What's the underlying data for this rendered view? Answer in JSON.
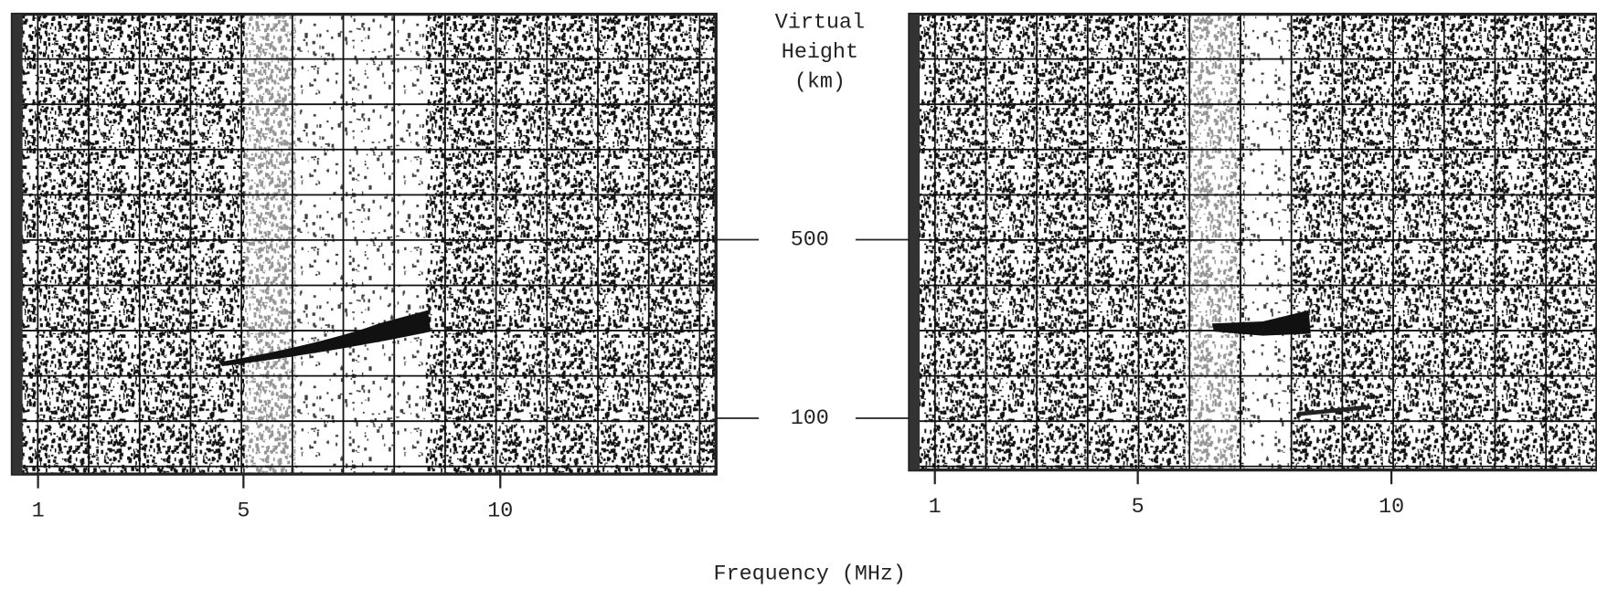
{
  "chart_data": [
    {
      "type": "ionogram",
      "ylabel": [
        "Virtual",
        "Height",
        "(km)"
      ],
      "xlabel": "Frequency (MHz)",
      "xlim": [
        0.5,
        14.2
      ],
      "xticks": [
        1,
        5,
        10
      ],
      "ylim": [
        -25,
        1005
      ],
      "yticks": [
        500,
        100
      ]
    },
    {
      "type": "ionogram",
      "xlim": [
        0.5,
        14.05
      ],
      "xticks": [
        1,
        5,
        10
      ],
      "ylim": [
        -25,
        1005
      ]
    }
  ]
}
